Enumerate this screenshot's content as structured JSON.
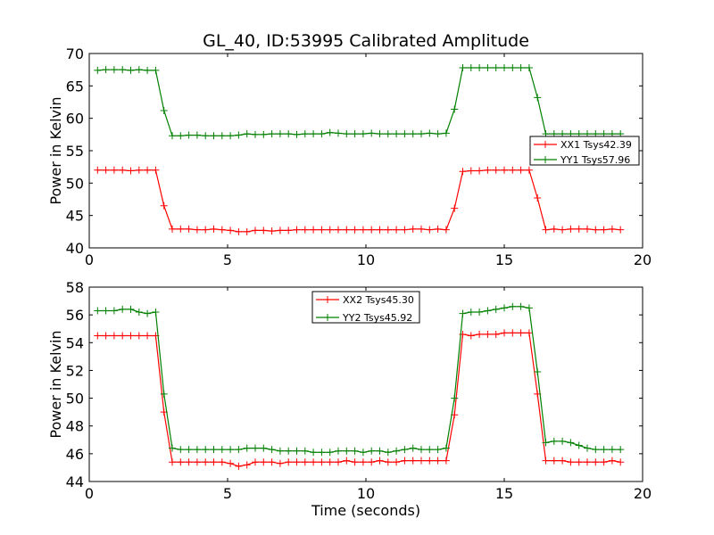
{
  "chart_data": [
    {
      "type": "line",
      "title": "GL_40, ID:53995 Calibrated Amplitude",
      "xlabel": "",
      "ylabel": "Power in Kelvin",
      "xlim": [
        0,
        20
      ],
      "ylim": [
        40,
        70
      ],
      "xticks": [
        "0",
        "5",
        "10",
        "15",
        "20"
      ],
      "yticks": [
        "40",
        "45",
        "50",
        "55",
        "60",
        "65",
        "70"
      ],
      "legend_position": "right",
      "series": [
        {
          "name": "XX1 Tsys42.39",
          "color": "#ff0000",
          "x": [
            0.3,
            0.6,
            0.9,
            1.2,
            1.5,
            1.8,
            2.1,
            2.4,
            2.7,
            3.0,
            3.3,
            3.6,
            3.9,
            4.2,
            4.5,
            4.8,
            5.1,
            5.4,
            5.7,
            6.0,
            6.3,
            6.6,
            6.9,
            7.2,
            7.5,
            7.8,
            8.1,
            8.4,
            8.7,
            9.0,
            9.3,
            9.6,
            9.9,
            10.2,
            10.5,
            10.8,
            11.1,
            11.4,
            11.7,
            12.0,
            12.3,
            12.6,
            12.9,
            13.2,
            13.5,
            13.8,
            14.1,
            14.4,
            14.7,
            15.0,
            15.3,
            15.6,
            15.9,
            16.2,
            16.5,
            16.8,
            17.1,
            17.4,
            17.7,
            18.0,
            18.3,
            18.6,
            18.9,
            19.2
          ],
          "y": [
            52.0,
            52.0,
            52.0,
            52.0,
            51.9,
            52.0,
            52.0,
            52.0,
            46.5,
            42.9,
            42.9,
            42.9,
            42.8,
            42.8,
            42.9,
            42.8,
            42.7,
            42.5,
            42.5,
            42.7,
            42.7,
            42.6,
            42.7,
            42.7,
            42.8,
            42.8,
            42.8,
            42.8,
            42.8,
            42.8,
            42.8,
            42.8,
            42.8,
            42.8,
            42.8,
            42.8,
            42.8,
            42.8,
            42.9,
            42.9,
            42.8,
            42.9,
            42.8,
            46.1,
            51.8,
            51.9,
            51.9,
            52.0,
            52.0,
            52.0,
            52.0,
            52.0,
            52.0,
            47.7,
            42.8,
            42.9,
            42.8,
            42.9,
            42.9,
            42.9,
            42.8,
            42.8,
            42.9,
            42.8
          ]
        },
        {
          "name": "YY1 Tsys57.96",
          "color": "#008000",
          "x": [
            0.3,
            0.6,
            0.9,
            1.2,
            1.5,
            1.8,
            2.1,
            2.4,
            2.7,
            3.0,
            3.3,
            3.6,
            3.9,
            4.2,
            4.5,
            4.8,
            5.1,
            5.4,
            5.7,
            6.0,
            6.3,
            6.6,
            6.9,
            7.2,
            7.5,
            7.8,
            8.1,
            8.4,
            8.7,
            9.0,
            9.3,
            9.6,
            9.9,
            10.2,
            10.5,
            10.8,
            11.1,
            11.4,
            11.7,
            12.0,
            12.3,
            12.6,
            12.9,
            13.2,
            13.5,
            13.8,
            14.1,
            14.4,
            14.7,
            15.0,
            15.3,
            15.6,
            15.9,
            16.2,
            16.5,
            16.8,
            17.1,
            17.4,
            17.7,
            18.0,
            18.3,
            18.6,
            18.9,
            19.2
          ],
          "y": [
            67.4,
            67.5,
            67.5,
            67.5,
            67.4,
            67.5,
            67.4,
            67.4,
            61.2,
            57.3,
            57.3,
            57.4,
            57.4,
            57.3,
            57.3,
            57.3,
            57.3,
            57.4,
            57.6,
            57.5,
            57.5,
            57.6,
            57.6,
            57.6,
            57.5,
            57.6,
            57.6,
            57.6,
            57.8,
            57.7,
            57.6,
            57.6,
            57.6,
            57.7,
            57.6,
            57.6,
            57.6,
            57.6,
            57.6,
            57.6,
            57.7,
            57.6,
            57.7,
            61.4,
            67.8,
            67.8,
            67.8,
            67.8,
            67.8,
            67.8,
            67.8,
            67.8,
            67.8,
            63.2,
            57.6,
            57.6,
            57.6,
            57.6,
            57.6,
            57.6,
            57.6,
            57.6,
            57.6,
            57.6
          ]
        }
      ]
    },
    {
      "type": "line",
      "title": "",
      "xlabel": "Time (seconds)",
      "ylabel": "Power in Kelvin",
      "xlim": [
        0,
        20
      ],
      "ylim": [
        44,
        58
      ],
      "xticks": [
        "0",
        "5",
        "10",
        "15",
        "20"
      ],
      "yticks": [
        "44",
        "46",
        "48",
        "50",
        "52",
        "54",
        "56",
        "58"
      ],
      "legend_position": "top-center",
      "series": [
        {
          "name": "XX2 Tsys45.30",
          "color": "#ff0000",
          "x": [
            0.3,
            0.6,
            0.9,
            1.2,
            1.5,
            1.8,
            2.1,
            2.4,
            2.7,
            3.0,
            3.3,
            3.6,
            3.9,
            4.2,
            4.5,
            4.8,
            5.1,
            5.4,
            5.7,
            6.0,
            6.3,
            6.6,
            6.9,
            7.2,
            7.5,
            7.8,
            8.1,
            8.4,
            8.7,
            9.0,
            9.3,
            9.6,
            9.9,
            10.2,
            10.5,
            10.8,
            11.1,
            11.4,
            11.7,
            12.0,
            12.3,
            12.6,
            12.9,
            13.2,
            13.5,
            13.8,
            14.1,
            14.4,
            14.7,
            15.0,
            15.3,
            15.6,
            15.9,
            16.2,
            16.5,
            16.8,
            17.1,
            17.4,
            17.7,
            18.0,
            18.3,
            18.6,
            18.9,
            19.2
          ],
          "y": [
            54.5,
            54.5,
            54.5,
            54.5,
            54.5,
            54.5,
            54.5,
            54.5,
            49.0,
            45.4,
            45.4,
            45.4,
            45.4,
            45.4,
            45.4,
            45.4,
            45.3,
            45.1,
            45.2,
            45.4,
            45.4,
            45.4,
            45.3,
            45.4,
            45.4,
            45.4,
            45.4,
            45.4,
            45.4,
            45.4,
            45.5,
            45.4,
            45.4,
            45.4,
            45.5,
            45.4,
            45.4,
            45.5,
            45.5,
            45.5,
            45.5,
            45.5,
            45.5,
            48.8,
            54.6,
            54.5,
            54.6,
            54.6,
            54.6,
            54.7,
            54.7,
            54.7,
            54.7,
            50.3,
            45.5,
            45.5,
            45.5,
            45.4,
            45.4,
            45.4,
            45.4,
            45.4,
            45.5,
            45.4
          ]
        },
        {
          "name": "YY2 Tsys45.92",
          "color": "#008000",
          "x": [
            0.3,
            0.6,
            0.9,
            1.2,
            1.5,
            1.8,
            2.1,
            2.4,
            2.7,
            3.0,
            3.3,
            3.6,
            3.9,
            4.2,
            4.5,
            4.8,
            5.1,
            5.4,
            5.7,
            6.0,
            6.3,
            6.6,
            6.9,
            7.2,
            7.5,
            7.8,
            8.1,
            8.4,
            8.7,
            9.0,
            9.3,
            9.6,
            9.9,
            10.2,
            10.5,
            10.8,
            11.1,
            11.4,
            11.7,
            12.0,
            12.3,
            12.6,
            12.9,
            13.2,
            13.5,
            13.8,
            14.1,
            14.4,
            14.7,
            15.0,
            15.3,
            15.6,
            15.9,
            16.2,
            16.5,
            16.8,
            17.1,
            17.4,
            17.7,
            18.0,
            18.3,
            18.6,
            18.9,
            19.2
          ],
          "y": [
            56.3,
            56.3,
            56.3,
            56.4,
            56.4,
            56.2,
            56.1,
            56.2,
            50.3,
            46.4,
            46.3,
            46.3,
            46.3,
            46.3,
            46.3,
            46.3,
            46.3,
            46.3,
            46.4,
            46.4,
            46.4,
            46.3,
            46.2,
            46.2,
            46.2,
            46.2,
            46.1,
            46.1,
            46.1,
            46.2,
            46.2,
            46.2,
            46.1,
            46.2,
            46.2,
            46.1,
            46.2,
            46.3,
            46.4,
            46.3,
            46.3,
            46.3,
            46.4,
            50.0,
            56.1,
            56.2,
            56.2,
            56.3,
            56.4,
            56.5,
            56.6,
            56.6,
            56.5,
            51.9,
            46.8,
            46.9,
            46.9,
            46.8,
            46.6,
            46.4,
            46.3,
            46.3,
            46.3,
            46.3
          ]
        }
      ]
    }
  ]
}
